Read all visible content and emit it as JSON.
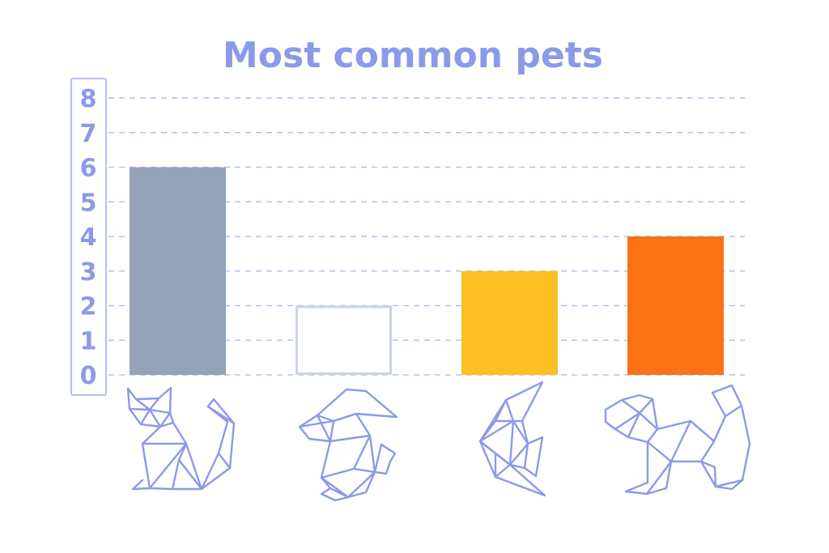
{
  "chart_data": {
    "type": "bar",
    "title": "Most common pets",
    "categories": [
      "cat-icon",
      "rabbit-icon",
      "fish-icon",
      "dog-icon"
    ],
    "values": [
      6,
      2,
      3,
      4
    ],
    "colors": [
      "#94a3b8",
      "#ffffff",
      "#fbbf24",
      "#f97316"
    ],
    "outline_colors": [
      "#94a3b8",
      "#cbd5e1",
      "#fbbf24",
      "#f97316"
    ],
    "yticks": [
      "0",
      "1",
      "2",
      "3",
      "4",
      "5",
      "6",
      "7",
      "8"
    ],
    "ylim": [
      0,
      8
    ],
    "grid": true,
    "legend": "none",
    "xlabel": "",
    "ylabel": ""
  }
}
